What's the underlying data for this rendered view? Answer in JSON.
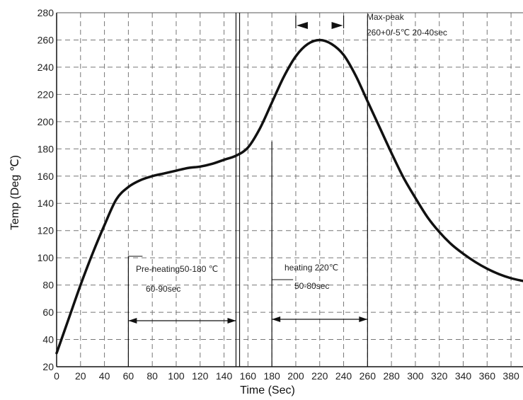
{
  "chart_data": {
    "type": "line",
    "xlabel": "Time (Sec)",
    "ylabel": "Temp (Deg ℃)",
    "xlim": [
      0,
      390
    ],
    "ylim": [
      20,
      280
    ],
    "x_ticks": [
      0,
      20,
      40,
      60,
      80,
      100,
      120,
      140,
      160,
      180,
      200,
      220,
      240,
      260,
      280,
      300,
      320,
      340,
      360,
      380
    ],
    "y_ticks": [
      20,
      40,
      60,
      80,
      100,
      120,
      140,
      160,
      180,
      200,
      220,
      240,
      260,
      280
    ],
    "grid": true,
    "line_color": "#111111",
    "series": [
      {
        "name": "",
        "x": [
          0,
          10,
          20,
          30,
          40,
          50,
          60,
          70,
          80,
          90,
          100,
          110,
          120,
          130,
          140,
          150,
          160,
          170,
          180,
          190,
          200,
          210,
          220,
          230,
          240,
          250,
          260,
          270,
          280,
          290,
          300,
          310,
          320,
          330,
          340,
          350,
          360,
          370,
          380,
          390
        ],
        "values": [
          30,
          55,
          80,
          103,
          124,
          143,
          152,
          157,
          160,
          162,
          164,
          166,
          167,
          169,
          172,
          175,
          181,
          195,
          214,
          233,
          248,
          257,
          260,
          257,
          249,
          234,
          215,
          196,
          177,
          159,
          144,
          130,
          119,
          110,
          103,
          97,
          92,
          88,
          85,
          83
        ]
      }
    ],
    "annotations": [
      {
        "id": "preheat",
        "label": "Pre-heating50-180 ℃",
        "sublabel": "60-90sec",
        "x_range": [
          60,
          150
        ]
      },
      {
        "id": "heating",
        "label": "heating 220℃",
        "sublabel": "50-80sec",
        "x_range": [
          180,
          260
        ]
      },
      {
        "id": "peak",
        "label": "Max-peak",
        "sublabel": "260+0/-5℃ 20-40sec",
        "x_range": [
          200,
          240
        ]
      }
    ]
  }
}
